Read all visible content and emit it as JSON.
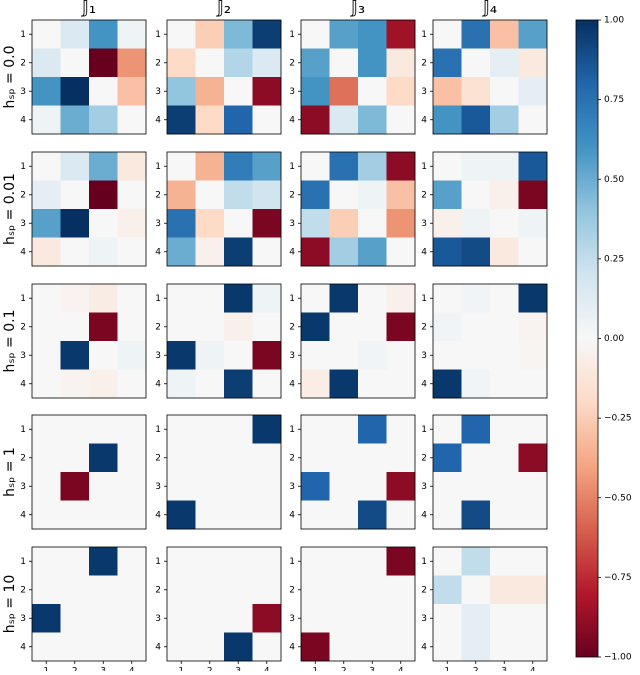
{
  "chart_data": {
    "type": "heatmap-grid",
    "columns": [
      "𝕁₁",
      "𝕁₂",
      "𝕁₃",
      "𝕁₄"
    ],
    "rows": [
      "hₛₚ = 0.0",
      "hₛₚ = 0.01",
      "hₛₚ = 0.1",
      "hₛₚ = 1",
      "hₛₚ = 10"
    ],
    "ticklabels": [
      1,
      2,
      3,
      4
    ],
    "colormap": [
      "#67001f",
      "#b2182b",
      "#d6604d",
      "#f4a582",
      "#fddbc7",
      "#f7f7f7",
      "#d1e5f0",
      "#92c5de",
      "#4393c3",
      "#2166ac",
      "#053061"
    ],
    "clim": [
      -1,
      1
    ],
    "cticks": [
      {
        "value": 1,
        "label": "1.00"
      },
      {
        "value": 0.75,
        "label": "0.75"
      },
      {
        "value": 0.5,
        "label": "0.50"
      },
      {
        "value": 0.25,
        "label": "0.25"
      },
      {
        "value": 0,
        "label": "0.00"
      },
      {
        "value": -0.25,
        "label": "−0.25"
      },
      {
        "value": -0.5,
        "label": "−0.50"
      },
      {
        "value": -0.75,
        "label": "−0.75"
      },
      {
        "value": -1,
        "label": "−1.00"
      }
    ],
    "matrices": [
      [
        [
          [
            0,
            0.15,
            0.6,
            0.05
          ],
          [
            0.15,
            0,
            -1,
            -0.45
          ],
          [
            0.6,
            1,
            0,
            -0.3
          ],
          [
            0.05,
            0.5,
            0.35,
            0
          ]
        ],
        [
          [
            0,
            -0.25,
            0.45,
            0.95
          ],
          [
            -0.2,
            0,
            0.3,
            0.15
          ],
          [
            0.4,
            -0.35,
            0,
            -0.9
          ],
          [
            0.95,
            -0.2,
            0.8,
            0
          ]
        ],
        [
          [
            0,
            0.55,
            0.6,
            -0.85
          ],
          [
            0.55,
            0,
            0.6,
            -0.1
          ],
          [
            0.6,
            -0.55,
            0,
            -0.2
          ],
          [
            -0.9,
            0.15,
            0.45,
            0
          ]
        ],
        [
          [
            0,
            0.75,
            -0.3,
            0.55
          ],
          [
            0.75,
            0,
            0.1,
            -0.1
          ],
          [
            -0.3,
            -0.15,
            0,
            0.1
          ],
          [
            0.6,
            0.85,
            0.35,
            0
          ]
        ]
      ],
      [
        [
          [
            0,
            0.15,
            0.5,
            -0.1
          ],
          [
            0.1,
            0,
            -1,
            0
          ],
          [
            0.55,
            1,
            0,
            -0.05
          ],
          [
            -0.1,
            0,
            0.05,
            0
          ]
        ],
        [
          [
            0,
            -0.35,
            0.7,
            0.55
          ],
          [
            -0.35,
            0,
            0.25,
            0.2
          ],
          [
            0.75,
            -0.2,
            0,
            -0.95
          ],
          [
            0.5,
            -0.05,
            0.95,
            0
          ]
        ],
        [
          [
            0,
            0.75,
            0.35,
            -0.9
          ],
          [
            0.75,
            0,
            0.05,
            -0.3
          ],
          [
            0.25,
            -0.25,
            0,
            -0.45
          ],
          [
            -0.9,
            0.35,
            0.55,
            0
          ]
        ],
        [
          [
            0,
            0.05,
            0.05,
            0.85
          ],
          [
            0.55,
            0,
            -0.05,
            -0.95
          ],
          [
            -0.05,
            0.05,
            0,
            0.05
          ],
          [
            0.85,
            0.9,
            -0.1,
            0
          ]
        ]
      ],
      [
        [
          [
            0,
            -0.03,
            -0.08,
            0
          ],
          [
            0,
            0,
            -0.95,
            0
          ],
          [
            0,
            0.97,
            0,
            0.05
          ],
          [
            0,
            -0.03,
            -0.05,
            0
          ]
        ],
        [
          [
            0,
            0,
            0.97,
            0.05
          ],
          [
            0,
            0,
            -0.05,
            0
          ],
          [
            0.97,
            0.05,
            0,
            -0.95
          ],
          [
            0.05,
            0,
            0.95,
            0
          ]
        ],
        [
          [
            0,
            0.97,
            0,
            -0.05
          ],
          [
            0.97,
            0,
            0,
            -0.95
          ],
          [
            0,
            0,
            0.03,
            0
          ],
          [
            -0.07,
            0.97,
            0,
            0
          ]
        ],
        [
          [
            0,
            0.03,
            0,
            0.97
          ],
          [
            0.03,
            0,
            0,
            -0.03
          ],
          [
            0,
            0,
            0,
            -0.02
          ],
          [
            0.97,
            0.03,
            0,
            0
          ]
        ]
      ],
      [
        [
          [
            0,
            0,
            0,
            0
          ],
          [
            0,
            0,
            0.97,
            0
          ],
          [
            0,
            -0.95,
            0,
            0
          ],
          [
            0,
            0,
            0,
            0
          ]
        ],
        [
          [
            0,
            0,
            0,
            0.97
          ],
          [
            0,
            0,
            0,
            0
          ],
          [
            0,
            0,
            0,
            0
          ],
          [
            0.97,
            0,
            0,
            0
          ]
        ],
        [
          [
            0,
            0,
            0.8,
            0
          ],
          [
            0,
            0,
            0,
            0
          ],
          [
            0.8,
            0,
            0,
            -0.9
          ],
          [
            0,
            0,
            0.9,
            0
          ]
        ],
        [
          [
            0,
            0.8,
            0,
            0
          ],
          [
            0.8,
            0,
            0,
            -0.9
          ],
          [
            0,
            0,
            0,
            0
          ],
          [
            0,
            0.9,
            0,
            0
          ]
        ]
      ],
      [
        [
          [
            0,
            0,
            0.97,
            0
          ],
          [
            0,
            0,
            0,
            0
          ],
          [
            0.97,
            0,
            0,
            0
          ],
          [
            0,
            0,
            0,
            0
          ]
        ],
        [
          [
            0,
            0,
            0,
            0
          ],
          [
            0,
            0,
            0,
            0
          ],
          [
            0,
            0,
            0,
            -0.9
          ],
          [
            0,
            0,
            0.97,
            0
          ]
        ],
        [
          [
            0,
            0,
            0,
            -0.95
          ],
          [
            0,
            0,
            0,
            0
          ],
          [
            0,
            0,
            0,
            0
          ],
          [
            -0.95,
            0,
            0,
            0
          ]
        ],
        [
          [
            0,
            0.25,
            0,
            0
          ],
          [
            0.25,
            0,
            -0.1,
            -0.1
          ],
          [
            0,
            0.1,
            0,
            0
          ],
          [
            0,
            0.1,
            0,
            0
          ]
        ]
      ]
    ]
  }
}
